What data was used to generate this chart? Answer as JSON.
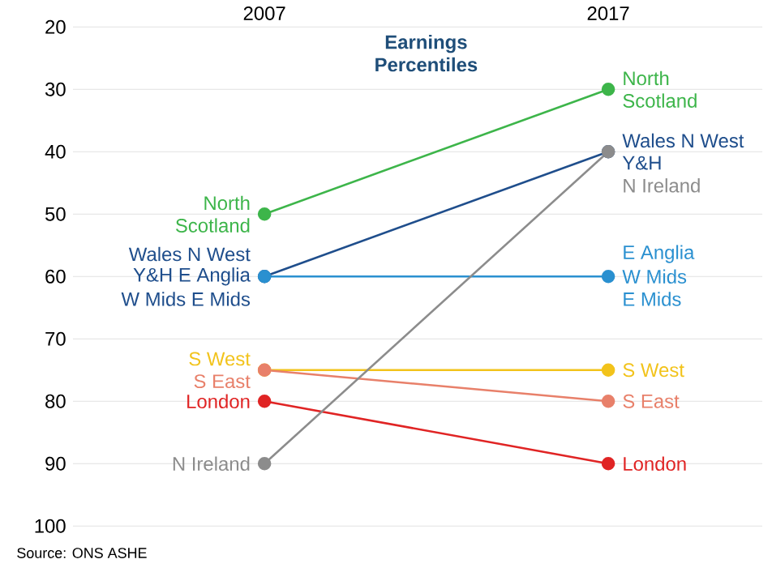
{
  "chart_data": {
    "type": "line",
    "title": "Earnings Percentiles",
    "categories": [
      "2007",
      "2017"
    ],
    "ylim": [
      100,
      20
    ],
    "yticks": [
      20,
      30,
      40,
      50,
      60,
      70,
      80,
      90,
      100
    ],
    "grid": "y",
    "marker": "circle",
    "series": [
      {
        "color": "#3db54a",
        "values": [
          50,
          30
        ]
      },
      {
        "color": "#1f4e8c",
        "values": [
          60,
          40
        ]
      },
      {
        "color": "#2a90d0",
        "values": [
          60,
          60
        ]
      },
      {
        "color": "#f2c31b",
        "values": [
          75,
          75
        ]
      },
      {
        "color": "#e8806a",
        "values": [
          75,
          80
        ]
      },
      {
        "color": "#e02424",
        "values": [
          80,
          90
        ]
      },
      {
        "name": "N Ireland",
        "color": "#8c8c8c",
        "values": [
          90,
          40
        ]
      }
    ],
    "annotations": [
      {
        "text": "North",
        "x": "2007",
        "y": 50
      },
      {
        "text": "Scotland",
        "x": "2007",
        "y": 50
      },
      {
        "text": "Wales N West",
        "x": "2007",
        "y": 60
      },
      {
        "text": "Y&H E Anglia",
        "x": "2007",
        "y": 60
      },
      {
        "text": "W Mids E Mids",
        "x": "2007",
        "y": 60
      },
      {
        "text": "S West",
        "x": "2007",
        "y": 75
      },
      {
        "text": "S East",
        "x": "2007",
        "y": 75
      },
      {
        "text": "London",
        "x": "2007",
        "y": 80
      },
      {
        "text": "North",
        "x": "2017",
        "y": 30
      },
      {
        "text": "Scotland",
        "x": "2017",
        "y": 30
      },
      {
        "text": "Wales N West",
        "x": "2017",
        "y": 40
      },
      {
        "text": "Y&H",
        "x": "2017",
        "y": 40
      },
      {
        "text": "E Anglia",
        "x": "2017",
        "y": 60
      },
      {
        "text": "W Mids",
        "x": "2017",
        "y": 60
      },
      {
        "text": "E Mids",
        "x": "2017",
        "y": 60
      },
      {
        "text": "S West",
        "x": "2017",
        "y": 75
      },
      {
        "text": "S East",
        "x": "2017",
        "y": 80
      },
      {
        "text": "London",
        "x": "2017",
        "y": 90
      },
      "Source: ONS ASHE"
    ]
  }
}
